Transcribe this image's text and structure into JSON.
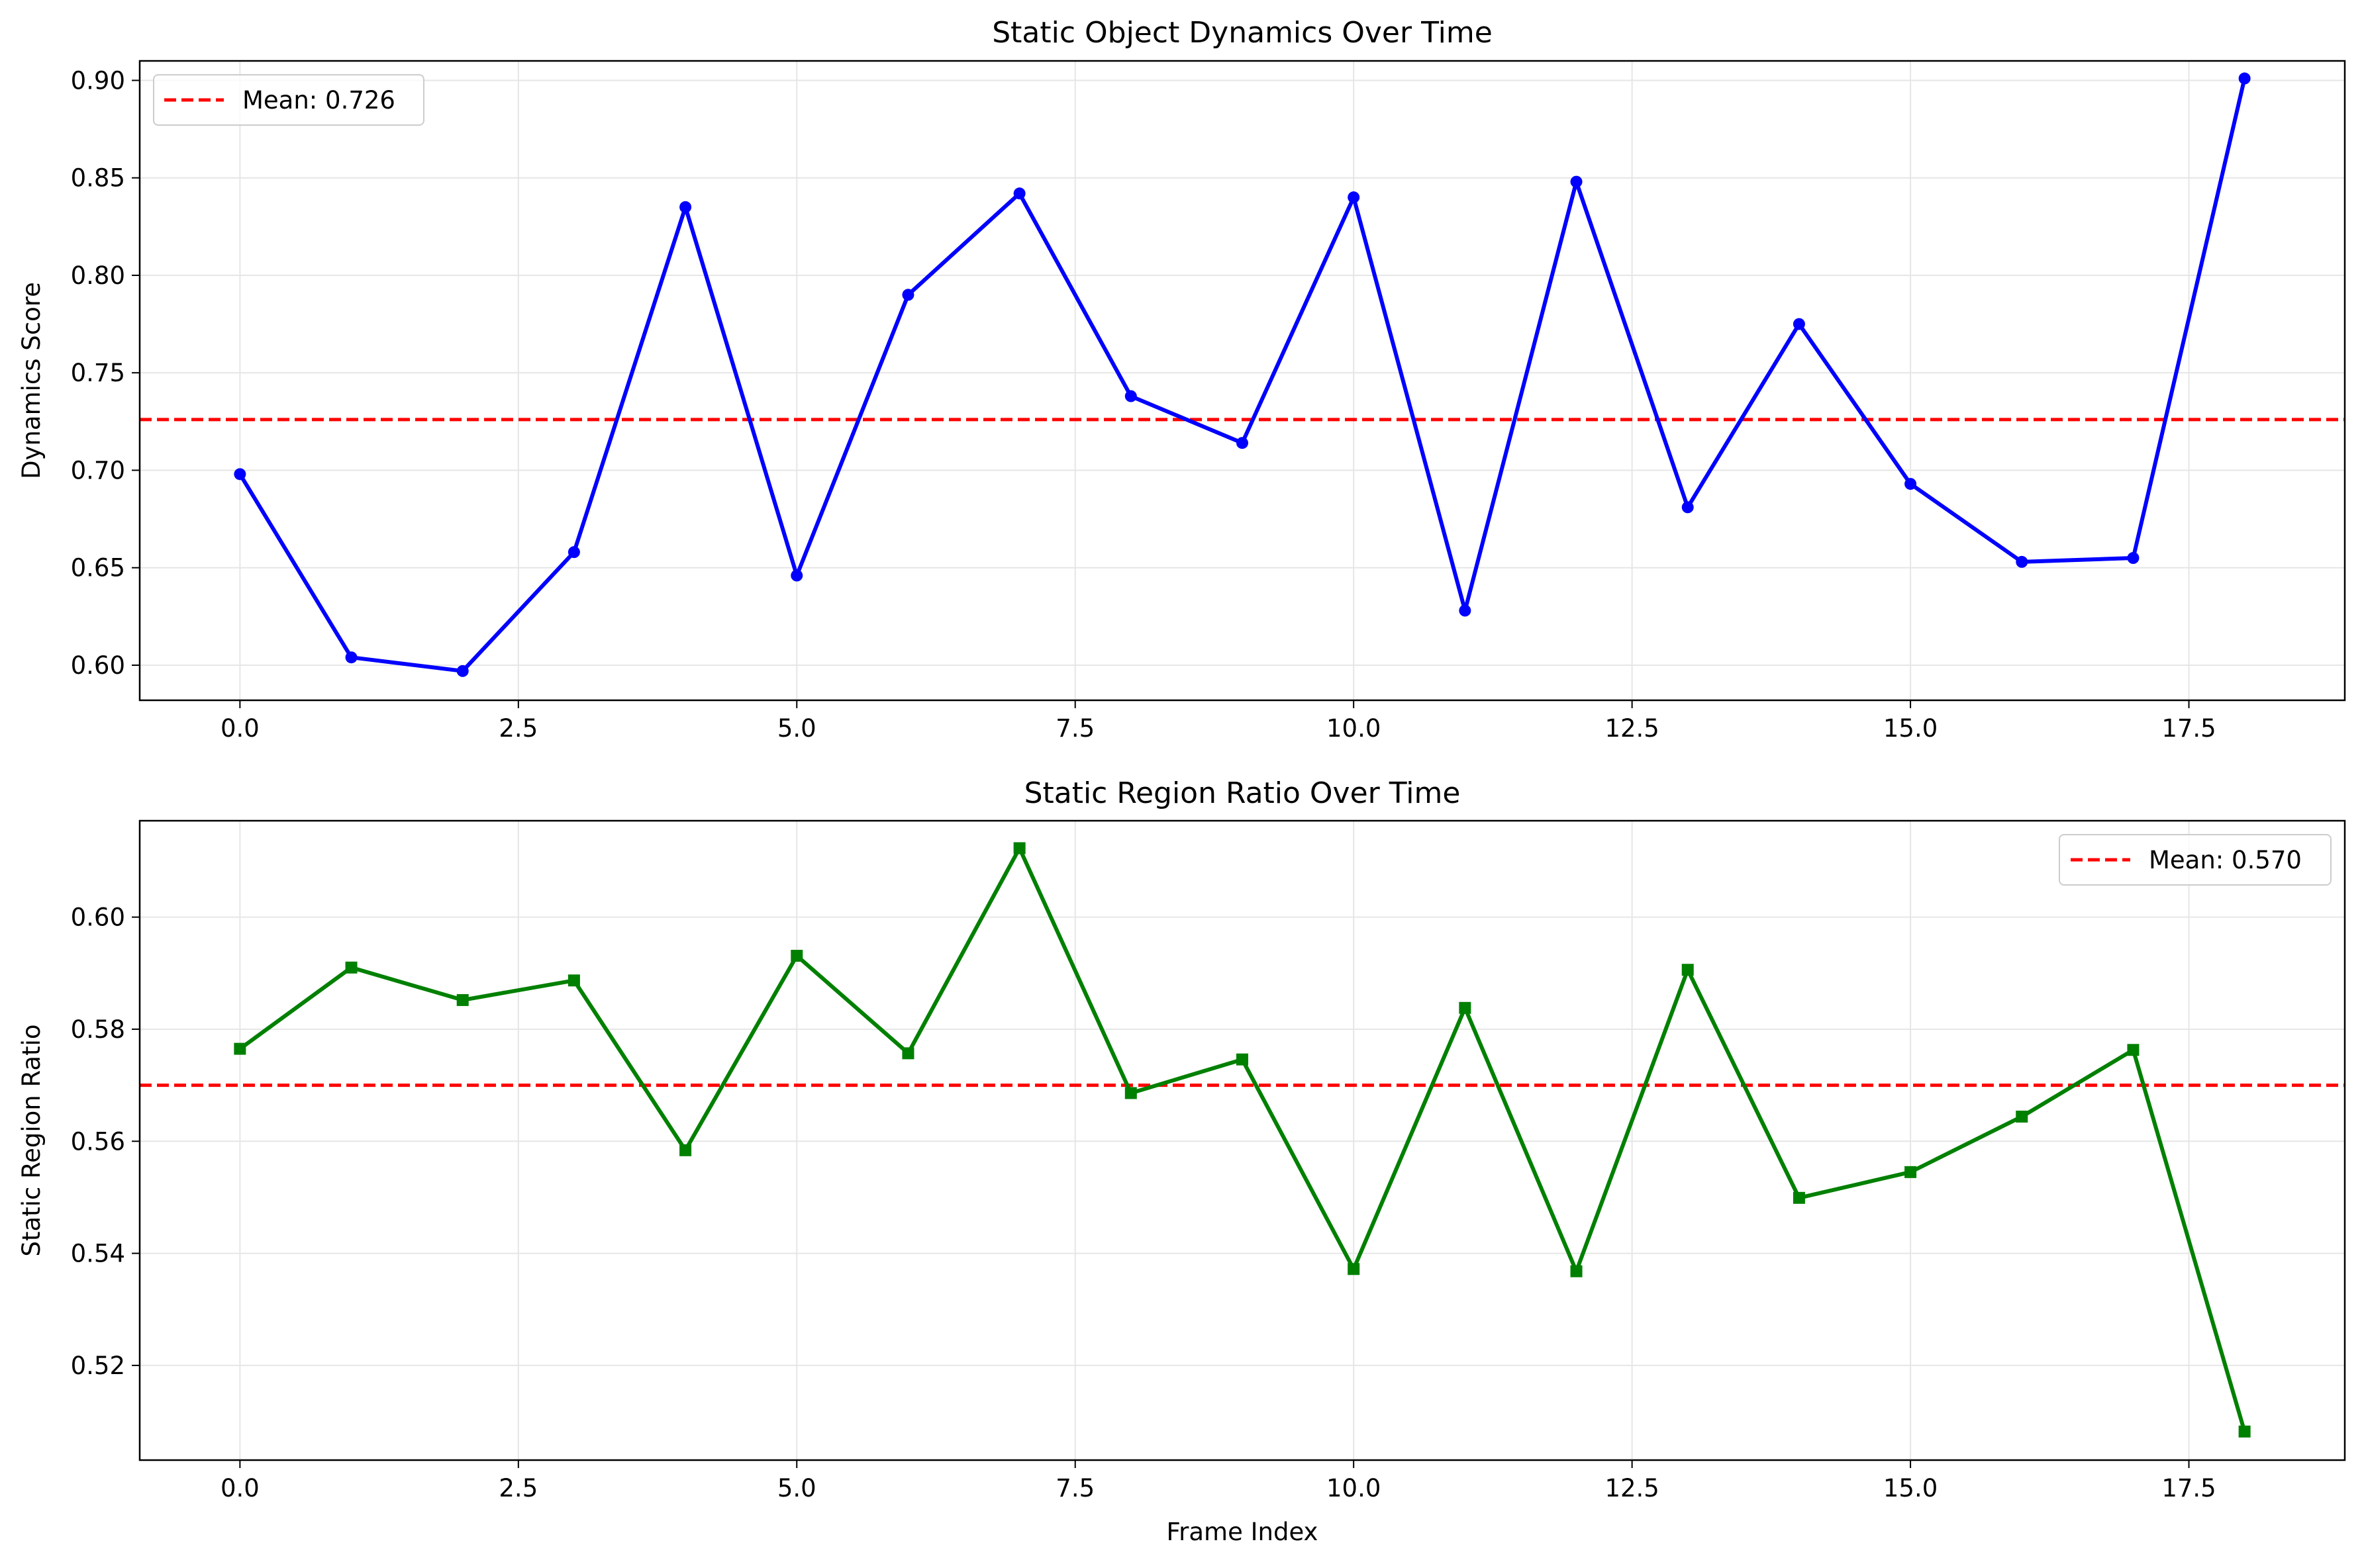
{
  "chart_data": [
    {
      "type": "line",
      "title": "Static Object Dynamics Over Time",
      "xlabel": "",
      "ylabel": "Dynamics Score",
      "xlim": [
        -0.9,
        18.9
      ],
      "ylim": [
        0.582,
        0.91
      ],
      "xticks": [
        0.0,
        2.5,
        5.0,
        7.5,
        10.0,
        12.5,
        15.0,
        17.5
      ],
      "xtick_labels": [
        "0.0",
        "2.5",
        "5.0",
        "7.5",
        "10.0",
        "12.5",
        "15.0",
        "17.5"
      ],
      "yticks": [
        0.6,
        0.65,
        0.7,
        0.75,
        0.8,
        0.85,
        0.9
      ],
      "ytick_labels": [
        "0.60",
        "0.65",
        "0.70",
        "0.75",
        "0.80",
        "0.85",
        "0.90"
      ],
      "grid": true,
      "legend_position": "upper-left",
      "x": [
        0,
        1,
        2,
        3,
        4,
        5,
        6,
        7,
        8,
        9,
        10,
        11,
        12,
        13,
        14,
        15,
        16,
        17,
        18
      ],
      "series": [
        {
          "values": [
            0.698,
            0.604,
            0.597,
            0.658,
            0.835,
            0.646,
            0.79,
            0.842,
            0.738,
            0.714,
            0.84,
            0.628,
            0.848,
            0.681,
            0.775,
            0.693,
            0.653,
            0.655,
            0.901
          ],
          "color": "#0000ff",
          "marker": "circle"
        }
      ],
      "mean_line": {
        "value": 0.726,
        "label": "Mean: 0.726",
        "color": "#ff0000"
      }
    },
    {
      "type": "line",
      "title": "Static Region Ratio Over Time",
      "xlabel": "Frame Index",
      "ylabel": "Static Region Ratio",
      "xlim": [
        -0.9,
        18.9
      ],
      "ylim": [
        0.5031,
        0.6172
      ],
      "xticks": [
        0.0,
        2.5,
        5.0,
        7.5,
        10.0,
        12.5,
        15.0,
        17.5
      ],
      "xtick_labels": [
        "0.0",
        "2.5",
        "5.0",
        "7.5",
        "10.0",
        "12.5",
        "15.0",
        "17.5"
      ],
      "yticks": [
        0.52,
        0.54,
        0.56,
        0.58,
        0.6
      ],
      "ytick_labels": [
        "0.52",
        "0.54",
        "0.56",
        "0.58",
        "0.60"
      ],
      "grid": true,
      "legend_position": "upper-right",
      "x": [
        0,
        1,
        2,
        3,
        4,
        5,
        6,
        7,
        8,
        9,
        10,
        11,
        12,
        13,
        14,
        15,
        16,
        17,
        18
      ],
      "series": [
        {
          "values": [
            0.5765,
            0.591,
            0.5852,
            0.5887,
            0.5584,
            0.5931,
            0.5757,
            0.6123,
            0.5686,
            0.5746,
            0.5372,
            0.5838,
            0.5368,
            0.5906,
            0.5499,
            0.5545,
            0.5644,
            0.5763,
            0.5082
          ],
          "color": "#008000",
          "marker": "square"
        }
      ],
      "mean_line": {
        "value": 0.57,
        "label": "Mean: 0.570",
        "color": "#ff0000"
      }
    }
  ]
}
